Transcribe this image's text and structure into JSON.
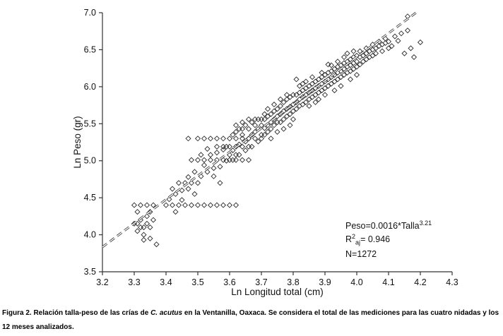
{
  "figure": {
    "caption_prefix": "Figura 2. Relación talla-peso de las crías de ",
    "caption_species": "C. acutus",
    "caption_suffix": " en la Ventanilla, Oaxaca. Se considera el total de las mediciones para las cuatro nidadas y los 12 meses analizados."
  },
  "chart_data": {
    "type": "scatter",
    "title": "",
    "xlabel": "Ln Longitud total (cm)",
    "ylabel": "Ln Peso (gr)",
    "xlim": [
      3.2,
      4.3
    ],
    "ylim": [
      3.5,
      7.0
    ],
    "x_ticks": [
      "3.2",
      "3.3",
      "3.4",
      "3.5",
      "3.6",
      "3.7",
      "3.8",
      "3.9",
      "4.0",
      "4.1",
      "4.2",
      "4.3"
    ],
    "y_ticks": [
      "3.5",
      "4.0",
      "4.5",
      "5.0",
      "5.5",
      "6.0",
      "6.5",
      "7.0"
    ],
    "grid": false,
    "legend": "none",
    "marker": "open-diamond",
    "marker_color": "#2b2b2b",
    "fit_line": {
      "a": 0.0016,
      "b": 3.21,
      "style": "dashed",
      "x_start": 3.2,
      "x_end": 4.186
    },
    "annotations": {
      "equation_base": "Peso=0.0016*Talla",
      "equation_exponent": "3.21",
      "r2_base": "R",
      "r2_sup": "2",
      "r2_sub": "aj",
      "r2_value": "= 0.946",
      "n": "N=1272"
    },
    "points": [
      [
        3.3,
        4.15
      ],
      [
        3.31,
        4.05
      ],
      [
        3.31,
        4.15
      ],
      [
        3.32,
        4.1
      ],
      [
        3.32,
        4.2
      ],
      [
        3.33,
        4.1
      ],
      [
        3.33,
        4.0
      ],
      [
        3.34,
        4.15
      ],
      [
        3.34,
        4.25
      ],
      [
        3.35,
        4.1
      ],
      [
        3.35,
        3.95
      ],
      [
        3.36,
        4.2
      ],
      [
        3.3,
        4.4
      ],
      [
        3.32,
        4.4
      ],
      [
        3.34,
        4.4
      ],
      [
        3.36,
        4.4
      ],
      [
        3.37,
        3.87
      ],
      [
        3.33,
        3.93
      ],
      [
        3.31,
        4.31
      ],
      [
        3.35,
        4.31
      ],
      [
        3.4,
        4.4
      ],
      [
        3.42,
        4.4
      ],
      [
        3.44,
        4.4
      ],
      [
        3.46,
        4.4
      ],
      [
        3.48,
        4.4
      ],
      [
        3.5,
        4.4
      ],
      [
        3.41,
        4.48
      ],
      [
        3.43,
        4.55
      ],
      [
        3.45,
        4.6
      ],
      [
        3.47,
        4.62
      ],
      [
        3.44,
        4.7
      ],
      [
        3.46,
        4.7
      ],
      [
        3.48,
        4.7
      ],
      [
        3.5,
        4.7
      ],
      [
        3.42,
        4.62
      ],
      [
        3.47,
        4.78
      ],
      [
        3.49,
        4.85
      ],
      [
        3.43,
        4.31
      ],
      [
        3.49,
        4.55
      ],
      [
        3.45,
        4.47
      ],
      [
        3.52,
        4.4
      ],
      [
        3.54,
        4.4
      ],
      [
        3.56,
        4.4
      ],
      [
        3.58,
        4.4
      ],
      [
        3.6,
        4.4
      ],
      [
        3.62,
        4.4
      ],
      [
        3.47,
        5.3
      ],
      [
        3.5,
        5.3
      ],
      [
        3.52,
        5.3
      ],
      [
        3.54,
        5.3
      ],
      [
        3.56,
        5.3
      ],
      [
        3.58,
        5.3
      ],
      [
        3.6,
        5.3
      ],
      [
        3.62,
        5.3
      ],
      [
        3.64,
        5.3
      ],
      [
        3.66,
        5.3
      ],
      [
        3.68,
        5.3
      ],
      [
        3.7,
        5.3
      ],
      [
        3.48,
        5.01
      ],
      [
        3.5,
        5.01
      ],
      [
        3.52,
        5.01
      ],
      [
        3.54,
        5.01
      ],
      [
        3.56,
        5.01
      ],
      [
        3.58,
        5.01
      ],
      [
        3.6,
        5.01
      ],
      [
        3.62,
        5.01
      ],
      [
        3.64,
        5.01
      ],
      [
        3.66,
        5.01
      ],
      [
        3.51,
        4.79
      ],
      [
        3.53,
        4.85
      ],
      [
        3.55,
        4.9
      ],
      [
        3.57,
        4.92
      ],
      [
        3.59,
        5.0
      ],
      [
        3.52,
        4.94
      ],
      [
        3.54,
        5.08
      ],
      [
        3.56,
        5.11
      ],
      [
        3.58,
        5.15
      ],
      [
        3.6,
        5.08
      ],
      [
        3.55,
        4.79
      ],
      [
        3.57,
        4.7
      ],
      [
        3.53,
        5.16
      ],
      [
        3.59,
        5.19
      ],
      [
        3.51,
        5.08
      ],
      [
        3.56,
        5.19
      ],
      [
        3.58,
        5.19
      ],
      [
        3.6,
        5.19
      ],
      [
        3.62,
        5.19
      ],
      [
        3.64,
        5.19
      ],
      [
        3.66,
        5.19
      ],
      [
        3.61,
        5.14
      ],
      [
        3.62,
        5.08
      ],
      [
        3.63,
        5.22
      ],
      [
        3.64,
        5.35
      ],
      [
        3.65,
        5.26
      ],
      [
        3.66,
        5.3
      ],
      [
        3.67,
        5.35
      ],
      [
        3.68,
        5.39
      ],
      [
        3.69,
        5.43
      ],
      [
        3.7,
        5.35
      ],
      [
        3.61,
        5.35
      ],
      [
        3.63,
        5.43
      ],
      [
        3.65,
        5.48
      ],
      [
        3.67,
        5.52
      ],
      [
        3.69,
        5.56
      ],
      [
        3.62,
        5.48
      ],
      [
        3.66,
        5.43
      ],
      [
        3.68,
        5.48
      ],
      [
        3.64,
        5.52
      ],
      [
        3.7,
        5.56
      ],
      [
        3.61,
        5.01
      ],
      [
        3.63,
        5.08
      ],
      [
        3.65,
        5.14
      ],
      [
        3.67,
        5.19
      ],
      [
        3.69,
        5.26
      ],
      [
        3.7,
        5.48
      ],
      [
        3.68,
        5.56
      ],
      [
        3.66,
        5.56
      ],
      [
        3.62,
        5.39
      ],
      [
        3.64,
        5.43
      ],
      [
        3.71,
        5.44
      ],
      [
        3.72,
        5.48
      ],
      [
        3.73,
        5.52
      ],
      [
        3.74,
        5.56
      ],
      [
        3.75,
        5.6
      ],
      [
        3.76,
        5.63
      ],
      [
        3.77,
        5.67
      ],
      [
        3.78,
        5.7
      ],
      [
        3.79,
        5.73
      ],
      [
        3.8,
        5.76
      ],
      [
        3.71,
        5.56
      ],
      [
        3.72,
        5.6
      ],
      [
        3.73,
        5.63
      ],
      [
        3.74,
        5.67
      ],
      [
        3.75,
        5.7
      ],
      [
        3.76,
        5.52
      ],
      [
        3.77,
        5.56
      ],
      [
        3.78,
        5.6
      ],
      [
        3.79,
        5.63
      ],
      [
        3.8,
        5.67
      ],
      [
        3.71,
        5.35
      ],
      [
        3.72,
        5.39
      ],
      [
        3.73,
        5.43
      ],
      [
        3.74,
        5.48
      ],
      [
        3.75,
        5.52
      ],
      [
        3.76,
        5.74
      ],
      [
        3.77,
        5.79
      ],
      [
        3.78,
        5.83
      ],
      [
        3.79,
        5.86
      ],
      [
        3.8,
        5.89
      ],
      [
        3.72,
        5.7
      ],
      [
        3.74,
        5.76
      ],
      [
        3.76,
        5.83
      ],
      [
        3.78,
        5.89
      ],
      [
        3.8,
        5.56
      ],
      [
        3.73,
        5.3
      ],
      [
        3.75,
        5.39
      ],
      [
        3.77,
        5.43
      ],
      [
        3.79,
        5.48
      ],
      [
        3.71,
        5.63
      ],
      [
        3.81,
        5.79
      ],
      [
        3.82,
        5.83
      ],
      [
        3.83,
        5.86
      ],
      [
        3.84,
        5.89
      ],
      [
        3.85,
        5.92
      ],
      [
        3.86,
        5.95
      ],
      [
        3.87,
        5.98
      ],
      [
        3.88,
        6.01
      ],
      [
        3.89,
        6.04
      ],
      [
        3.9,
        6.07
      ],
      [
        3.81,
        5.89
      ],
      [
        3.82,
        5.92
      ],
      [
        3.83,
        5.95
      ],
      [
        3.84,
        5.98
      ],
      [
        3.85,
        6.01
      ],
      [
        3.86,
        6.04
      ],
      [
        3.87,
        6.07
      ],
      [
        3.88,
        6.1
      ],
      [
        3.89,
        6.13
      ],
      [
        3.9,
        6.16
      ],
      [
        3.81,
        5.7
      ],
      [
        3.82,
        5.74
      ],
      [
        3.83,
        5.76
      ],
      [
        3.84,
        5.79
      ],
      [
        3.85,
        5.83
      ],
      [
        3.86,
        5.86
      ],
      [
        3.87,
        5.89
      ],
      [
        3.88,
        5.92
      ],
      [
        3.89,
        5.95
      ],
      [
        3.9,
        5.98
      ],
      [
        3.82,
        6.01
      ],
      [
        3.84,
        6.07
      ],
      [
        3.86,
        6.13
      ],
      [
        3.88,
        5.83
      ],
      [
        3.9,
        5.89
      ],
      [
        3.81,
        6.1
      ],
      [
        3.83,
        6.04
      ],
      [
        3.85,
        5.74
      ],
      [
        3.87,
        5.79
      ],
      [
        3.89,
        6.19
      ],
      [
        3.91,
        6.1
      ],
      [
        3.92,
        6.13
      ],
      [
        3.93,
        6.16
      ],
      [
        3.94,
        6.19
      ],
      [
        3.95,
        6.21
      ],
      [
        3.96,
        6.24
      ],
      [
        3.97,
        6.27
      ],
      [
        3.98,
        6.29
      ],
      [
        3.99,
        6.32
      ],
      [
        4.0,
        6.34
      ],
      [
        3.91,
        6.19
      ],
      [
        3.92,
        6.21
      ],
      [
        3.93,
        6.24
      ],
      [
        3.94,
        6.27
      ],
      [
        3.95,
        6.29
      ],
      [
        3.96,
        6.32
      ],
      [
        3.97,
        6.34
      ],
      [
        3.98,
        6.37
      ],
      [
        3.99,
        6.4
      ],
      [
        4.0,
        6.42
      ],
      [
        3.91,
        6.01
      ],
      [
        3.92,
        6.04
      ],
      [
        3.93,
        6.07
      ],
      [
        3.94,
        6.1
      ],
      [
        3.95,
        6.13
      ],
      [
        3.96,
        6.16
      ],
      [
        3.97,
        6.19
      ],
      [
        3.98,
        6.21
      ],
      [
        3.99,
        6.24
      ],
      [
        4.0,
        6.27
      ],
      [
        3.92,
        6.29
      ],
      [
        3.94,
        6.34
      ],
      [
        3.96,
        6.4
      ],
      [
        3.98,
        6.1
      ],
      [
        4.0,
        6.16
      ],
      [
        3.93,
        5.95
      ],
      [
        3.95,
        6.01
      ],
      [
        3.97,
        6.45
      ],
      [
        3.99,
        6.48
      ],
      [
        3.91,
        6.3
      ],
      [
        4.01,
        6.4
      ],
      [
        4.02,
        6.42
      ],
      [
        4.03,
        6.45
      ],
      [
        4.04,
        6.48
      ],
      [
        4.05,
        6.5
      ],
      [
        4.06,
        6.52
      ],
      [
        4.07,
        6.55
      ],
      [
        4.08,
        6.57
      ],
      [
        4.09,
        6.59
      ],
      [
        4.1,
        6.61
      ],
      [
        4.01,
        6.48
      ],
      [
        4.03,
        6.52
      ],
      [
        4.05,
        6.57
      ],
      [
        4.07,
        6.61
      ],
      [
        4.09,
        6.65
      ],
      [
        4.02,
        6.34
      ],
      [
        4.04,
        6.4
      ],
      [
        4.06,
        6.45
      ],
      [
        4.08,
        6.48
      ],
      [
        4.1,
        6.52
      ],
      [
        4.01,
        6.3
      ],
      [
        4.05,
        6.42
      ],
      [
        4.03,
        6.37
      ],
      [
        4.12,
        6.68
      ],
      [
        4.14,
        6.72
      ],
      [
        4.16,
        6.76
      ],
      [
        4.11,
        6.55
      ],
      [
        4.13,
        6.62
      ],
      [
        4.15,
        6.45
      ],
      [
        4.17,
        6.52
      ],
      [
        4.18,
        6.4
      ],
      [
        4.2,
        6.6
      ],
      [
        4.16,
        6.95
      ]
    ]
  }
}
